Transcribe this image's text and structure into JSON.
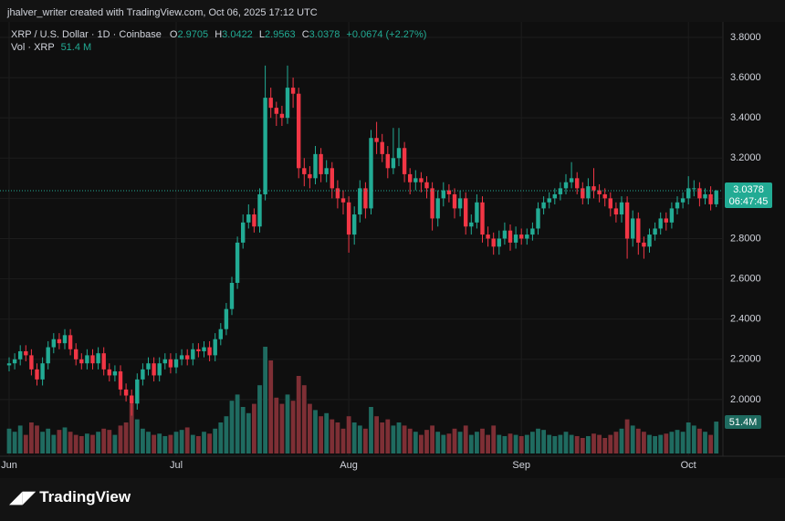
{
  "header": {
    "credit": "jhalver_writer created with TradingView.com, Oct 06, 2025 17:12 UTC"
  },
  "footer": {
    "brand": "TradingView"
  },
  "chart_data": {
    "type": "candlestick",
    "title": "XRP / U.S. Dollar · 1D · Coinbase",
    "ohlc_labels": [
      "O",
      "H",
      "L",
      "C"
    ],
    "change": "+0.0674 (+2.27%)",
    "volume_title": "Vol · XRP",
    "last_volume_label": "51.4 M",
    "last_volume_tag": "51.4M",
    "countdown": "06:47:45",
    "up_color": "#22ab94",
    "down_color": "#f23645",
    "volume_up_color": "#1f6b60",
    "volume_down_color": "#7e2f35",
    "grid": true,
    "ylim": [
      1.732,
      3.886
    ],
    "yticks": [
      {
        "value": 2,
        "label": "2.0000"
      },
      {
        "value": 2.2,
        "label": "2.2000"
      },
      {
        "value": 2.4,
        "label": "2.4000"
      },
      {
        "value": 2.6,
        "label": "2.6000"
      },
      {
        "value": 2.8,
        "label": "2.8000"
      },
      {
        "value": 3,
        "label": "3.0000"
      },
      {
        "value": 3.2,
        "label": "3.2000"
      },
      {
        "value": 3.4,
        "label": "3.4000"
      },
      {
        "value": 3.6,
        "label": "3.6000"
      },
      {
        "value": 3.8,
        "label": "3.8000"
      }
    ],
    "categories": [
      "Jun",
      null,
      null,
      null,
      null,
      null,
      null,
      null,
      null,
      null,
      null,
      null,
      null,
      null,
      null,
      null,
      null,
      null,
      null,
      null,
      null,
      null,
      null,
      null,
      null,
      null,
      null,
      null,
      null,
      null,
      "Jul",
      null,
      null,
      null,
      null,
      null,
      null,
      null,
      null,
      null,
      null,
      null,
      null,
      null,
      null,
      null,
      null,
      null,
      null,
      null,
      null,
      null,
      null,
      null,
      null,
      null,
      null,
      null,
      null,
      null,
      null,
      "Aug",
      null,
      null,
      null,
      null,
      null,
      null,
      null,
      null,
      null,
      null,
      null,
      null,
      null,
      null,
      null,
      null,
      null,
      null,
      null,
      null,
      null,
      null,
      null,
      null,
      null,
      null,
      null,
      null,
      null,
      null,
      "Sep",
      null,
      null,
      null,
      null,
      null,
      null,
      null,
      null,
      null,
      null,
      null,
      null,
      null,
      null,
      null,
      null,
      null,
      null,
      null,
      null,
      null,
      null,
      null,
      null,
      null,
      null,
      null,
      null,
      null,
      "Oct",
      null,
      null,
      null,
      null,
      null
    ],
    "open": [
      2.17,
      2.18,
      2.2,
      2.24,
      2.22,
      2.15,
      2.1,
      2.18,
      2.26,
      2.3,
      2.28,
      2.32,
      2.25,
      2.2,
      2.18,
      2.22,
      2.18,
      2.23,
      2.15,
      2.12,
      2.14,
      2.05,
      2.02,
      1.98,
      2.1,
      2.15,
      2.18,
      2.12,
      2.18,
      2.2,
      2.16,
      2.2,
      2.22,
      2.2,
      2.25,
      2.24,
      2.26,
      2.22,
      2.3,
      2.35,
      2.45,
      2.58,
      2.78,
      2.88,
      2.92,
      2.86,
      3.02,
      3.5,
      3.45,
      3.42,
      3.4,
      3.55,
      3.52,
      3.15,
      3.12,
      3.1,
      3.22,
      3.12,
      3.15,
      3.05,
      3.0,
      2.98,
      2.82,
      2.92,
      3.05,
      2.95,
      3.3,
      3.28,
      3.22,
      3.15,
      3.2,
      3.25,
      3.12,
      3.08,
      3.1,
      3.08,
      3.05,
      2.9,
      3.0,
      3.04,
      3.02,
      2.95,
      3.0,
      2.86,
      2.88,
      2.98,
      2.82,
      2.8,
      2.76,
      2.8,
      2.84,
      2.78,
      2.82,
      2.8,
      2.82,
      2.85,
      2.95,
      2.98,
      3.0,
      3.02,
      3.05,
      3.08,
      3.1,
      3.05,
      3.0,
      3.06,
      3.04,
      3.02,
      3.0,
      2.95,
      2.92,
      2.98,
      2.8,
      2.9,
      2.78,
      2.76,
      2.82,
      2.85,
      2.9,
      2.88,
      2.95,
      2.98,
      3.0,
      3.05,
      3.05,
      3.0,
      3.02,
      2.9705
    ],
    "high": [
      2.21,
      2.23,
      2.27,
      2.27,
      2.25,
      2.18,
      2.21,
      2.29,
      2.33,
      2.33,
      2.35,
      2.35,
      2.28,
      2.23,
      2.25,
      2.25,
      2.26,
      2.26,
      2.18,
      2.17,
      2.17,
      2.08,
      2.05,
      2.13,
      2.18,
      2.21,
      2.21,
      2.21,
      2.23,
      2.23,
      2.23,
      2.25,
      2.25,
      2.28,
      2.28,
      2.29,
      2.29,
      2.33,
      2.38,
      2.48,
      2.61,
      2.81,
      2.92,
      2.97,
      2.95,
      3.05,
      3.66,
      3.55,
      3.48,
      3.46,
      3.66,
      3.6,
      3.55,
      3.2,
      3.16,
      3.26,
      3.25,
      3.19,
      3.18,
      3.09,
      3.04,
      3.01,
      2.96,
      3.09,
      3.08,
      3.34,
      3.38,
      3.32,
      3.26,
      3.35,
      3.35,
      3.28,
      3.15,
      3.14,
      3.13,
      3.11,
      3.08,
      3.04,
      3.08,
      3.07,
      3.05,
      3.04,
      3.03,
      2.92,
      3.02,
      3.01,
      2.86,
      2.83,
      2.84,
      2.88,
      2.87,
      2.86,
      2.85,
      2.85,
      2.88,
      2.98,
      3.01,
      3.03,
      3.05,
      3.08,
      3.12,
      3.18,
      3.13,
      3.08,
      3.1,
      3.15,
      3.07,
      3.05,
      3.03,
      2.98,
      3.01,
      3.01,
      2.94,
      2.93,
      2.81,
      2.85,
      2.88,
      2.93,
      2.93,
      2.98,
      3.01,
      3.03,
      3.11,
      3.09,
      3.08,
      3.05,
      3.06,
      3.0422
    ],
    "low": [
      2.14,
      2.15,
      2.17,
      2.19,
      2.12,
      2.07,
      2.07,
      2.15,
      2.23,
      2.25,
      2.25,
      2.22,
      2.17,
      2.15,
      2.15,
      2.15,
      2.15,
      2.12,
      2.09,
      2.09,
      2.02,
      1.99,
      1.92,
      1.95,
      2.07,
      2.12,
      2.09,
      2.09,
      2.15,
      2.13,
      2.13,
      2.17,
      2.17,
      2.17,
      2.21,
      2.21,
      2.19,
      2.19,
      2.27,
      2.32,
      2.42,
      2.55,
      2.75,
      2.85,
      2.83,
      2.83,
      2.99,
      3.4,
      3.36,
      3.36,
      3.37,
      3.45,
      3.1,
      3.06,
      3.05,
      3.07,
      3.08,
      3.08,
      3.0,
      2.95,
      2.92,
      2.73,
      2.77,
      2.88,
      2.9,
      2.92,
      3.22,
      3.18,
      3.1,
      3.12,
      3.16,
      3.08,
      3.02,
      3.04,
      3.03,
      3.0,
      2.84,
      2.86,
      2.96,
      2.98,
      2.9,
      2.91,
      2.82,
      2.82,
      2.85,
      2.78,
      2.76,
      2.72,
      2.72,
      2.77,
      2.74,
      2.75,
      2.77,
      2.77,
      2.79,
      2.82,
      2.92,
      2.95,
      2.97,
      2.99,
      3.02,
      3.05,
      3.02,
      2.97,
      2.97,
      3.0,
      2.98,
      2.96,
      2.91,
      2.88,
      2.88,
      2.7,
      2.76,
      2.72,
      2.7,
      2.73,
      2.79,
      2.82,
      2.84,
      2.85,
      2.92,
      2.95,
      2.97,
      3.01,
      2.96,
      2.97,
      2.94,
      2.9563
    ],
    "close": [
      2.18,
      2.2,
      2.24,
      2.22,
      2.15,
      2.1,
      2.18,
      2.26,
      2.3,
      2.28,
      2.32,
      2.25,
      2.2,
      2.18,
      2.22,
      2.18,
      2.23,
      2.15,
      2.12,
      2.14,
      2.05,
      2.02,
      1.98,
      2.1,
      2.15,
      2.18,
      2.12,
      2.18,
      2.2,
      2.16,
      2.2,
      2.22,
      2.2,
      2.25,
      2.24,
      2.26,
      2.22,
      2.3,
      2.35,
      2.45,
      2.58,
      2.78,
      2.88,
      2.92,
      2.86,
      3.02,
      3.5,
      3.45,
      3.42,
      3.4,
      3.55,
      3.52,
      3.15,
      3.12,
      3.1,
      3.22,
      3.12,
      3.15,
      3.05,
      3.0,
      2.98,
      2.82,
      2.92,
      3.05,
      2.95,
      3.3,
      3.28,
      3.22,
      3.15,
      3.2,
      3.25,
      3.12,
      3.08,
      3.1,
      3.08,
      3.05,
      2.9,
      3.0,
      3.04,
      3.02,
      2.95,
      3.0,
      2.86,
      2.88,
      2.98,
      2.82,
      2.8,
      2.76,
      2.8,
      2.84,
      2.78,
      2.82,
      2.8,
      2.82,
      2.85,
      2.95,
      2.98,
      3.0,
      3.02,
      3.05,
      3.08,
      3.1,
      3.05,
      3.0,
      3.06,
      3.04,
      3.02,
      3.0,
      2.95,
      2.92,
      2.98,
      2.8,
      2.9,
      2.78,
      2.76,
      2.82,
      2.85,
      2.9,
      2.88,
      2.95,
      2.98,
      3.0,
      3.05,
      3.05,
      3.0,
      3.02,
      2.9705,
      3.0378
    ],
    "volume": [
      40,
      35,
      45,
      30,
      50,
      45,
      35,
      40,
      30,
      38,
      42,
      35,
      30,
      28,
      32,
      30,
      35,
      40,
      38,
      30,
      45,
      50,
      80,
      55,
      40,
      35,
      30,
      32,
      28,
      30,
      35,
      38,
      42,
      30,
      28,
      35,
      32,
      40,
      50,
      60,
      85,
      95,
      75,
      65,
      80,
      110,
      172,
      150,
      90,
      80,
      95,
      85,
      125,
      110,
      80,
      70,
      60,
      65,
      55,
      50,
      40,
      60,
      50,
      45,
      40,
      75,
      60,
      50,
      55,
      45,
      50,
      45,
      40,
      35,
      30,
      38,
      45,
      35,
      30,
      32,
      40,
      35,
      45,
      30,
      35,
      40,
      30,
      45,
      30,
      28,
      32,
      30,
      28,
      30,
      35,
      40,
      38,
      30,
      28,
      30,
      35,
      30,
      28,
      25,
      28,
      32,
      30,
      25,
      30,
      35,
      40,
      55,
      45,
      40,
      35,
      30,
      28,
      30,
      32,
      35,
      38,
      35,
      50,
      45,
      40,
      35,
      30,
      51.4
    ]
  }
}
